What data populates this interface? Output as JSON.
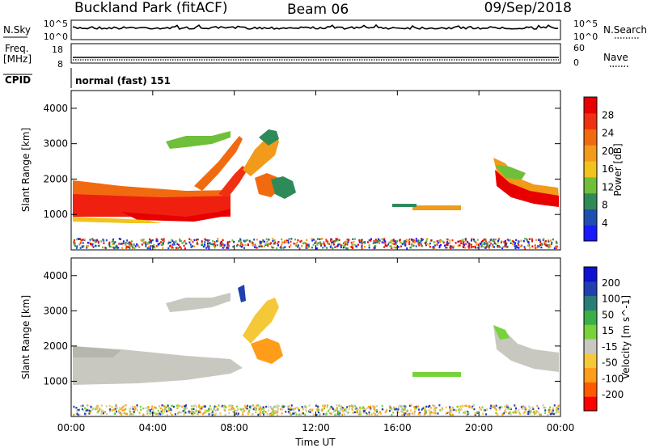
{
  "header": {
    "station": "Buckland Park (fitACF)",
    "beam": "Beam 06",
    "date": "09/Sep/2018"
  },
  "panels": {
    "nsky_label": "N.Sky",
    "nsky_tick_top": "10^5",
    "nsky_tick_bottom": "10^0",
    "nsearch_label": "N.Search",
    "freq_label_line1": "Freq.",
    "freq_label_line2": "[MHz]",
    "freq_tick_top": "18",
    "freq_tick_bottom": "8",
    "nave_label": "Nave",
    "nave_tick_top": "60",
    "nave_tick_bottom": "0",
    "cpid_label": "CPID",
    "cpid_text": "normal (fast) 151"
  },
  "colors": {
    "power": [
      "#1a1aff",
      "#1f4fae",
      "#2f8a5a",
      "#6fbf3a",
      "#f2c21f",
      "#f29a1a",
      "#f26a10",
      "#f03010",
      "#e80000"
    ],
    "velocity": [
      "#ff0000",
      "#ff5a00",
      "#ff9c1a",
      "#f5c83a",
      "#c8c8c0",
      "#78d23c",
      "#3cae4a",
      "#2a7c78",
      "#2040b0",
      "#1010d0"
    ],
    "ground": [
      "#f5c83a",
      "#78d23c",
      "#2040b0",
      "#c8c8c0",
      "#ff9c1a"
    ]
  },
  "chart_data": [
    {
      "type": "heatmap",
      "name": "power",
      "title": "",
      "xlabel": "",
      "ylabel": "Slant Range [km]",
      "x_ticks": [
        "00:00",
        "04:00",
        "08:00",
        "12:00",
        "16:00",
        "20:00",
        "00:00"
      ],
      "y_ticks": [
        "1000",
        "2000",
        "3000",
        "4000"
      ],
      "ylim": [
        0,
        4500
      ],
      "colorbar": {
        "label": "Power [dB]",
        "ticks": [
          "4",
          "8",
          "12",
          "16",
          "20",
          "24",
          "28"
        ],
        "range": [
          0,
          32
        ]
      }
    },
    {
      "type": "heatmap",
      "name": "velocity",
      "title": "",
      "xlabel": "Time UT",
      "ylabel": "Slant Range [km]",
      "x_ticks": [
        "00:00",
        "04:00",
        "08:00",
        "12:00",
        "16:00",
        "20:00",
        "00:00"
      ],
      "y_ticks": [
        "1000",
        "2000",
        "3000",
        "4000"
      ],
      "ylim": [
        0,
        4500
      ],
      "colorbar": {
        "label": "Velocity [m s^-1]",
        "ticks": [
          "200",
          "100",
          "50",
          "15",
          "-15",
          "-50",
          "-100",
          "-200"
        ]
      }
    }
  ]
}
